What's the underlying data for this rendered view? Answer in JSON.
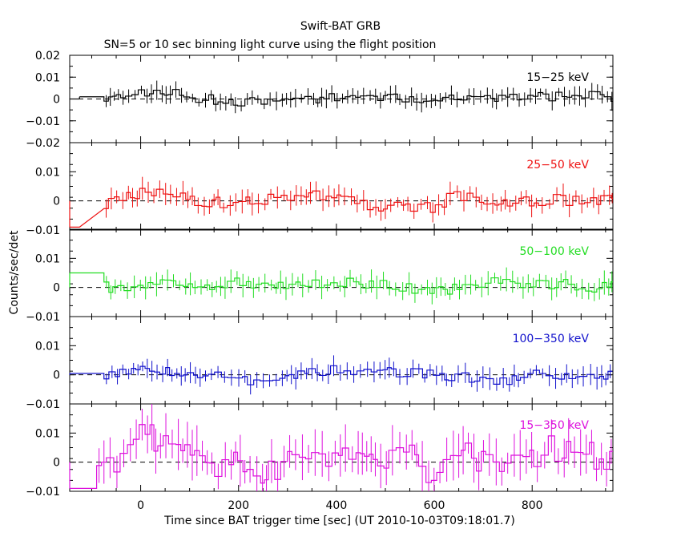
{
  "title": "Swift-BAT GRB",
  "subtitle": "SN=5 or 10 sec binning light curve using the flight position",
  "xlabel": "Time since BAT trigger time [sec] (UT 2010-10-03T09:18:01.7)",
  "ylabel": "Counts/sec/det",
  "xticks": [
    "0",
    "200",
    "400",
    "600",
    "800"
  ],
  "chart_data": {
    "type": "line",
    "xlim": [
      -145,
      965
    ],
    "x_tick_values": [
      0,
      200,
      400,
      600,
      800
    ],
    "panels": [
      {
        "name": "15−25 keV",
        "color": "#000000",
        "ylim": [
          -0.02,
          0.02
        ],
        "ytick_values": [
          -0.02,
          -0.01,
          0,
          0.01,
          0.02
        ],
        "ytick_labels": [
          "−0.02",
          "−0.01",
          "0",
          "0.01",
          "0.02"
        ],
        "first_bin": {
          "x0": -125,
          "x1": -75,
          "y": 0.001
        },
        "cps": [
          [
            -75,
            0
          ],
          [
            -60,
            0
          ],
          [
            0,
            0.003
          ],
          [
            60,
            0.003
          ],
          [
            120,
            0
          ],
          [
            200,
            -0.001
          ],
          [
            260,
            -0.002
          ],
          [
            320,
            0
          ],
          [
            430,
            0.001
          ],
          [
            500,
            0
          ],
          [
            650,
            0.001
          ],
          [
            740,
            0
          ],
          [
            940,
            0.002
          ],
          [
            965,
            0.0005
          ]
        ],
        "amp": 0.0022,
        "err": 0.003,
        "seed": 11
      },
      {
        "name": "25−50 keV",
        "color": "#ee1111",
        "ylim": [
          -0.01,
          0.02
        ],
        "ytick_values": [
          -0.01,
          0,
          0.01
        ],
        "ytick_labels": [
          "−0.01",
          "0",
          "0.01"
        ],
        "first_bin": {
          "x0": -145,
          "x1": -125,
          "y": -0.009
        },
        "cps": [
          [
            -75,
            -0.003
          ],
          [
            -60,
            0
          ],
          [
            0,
            0.003
          ],
          [
            60,
            0.004
          ],
          [
            120,
            0
          ],
          [
            200,
            -0.001
          ],
          [
            360,
            0.003
          ],
          [
            420,
            0
          ],
          [
            500,
            -0.002
          ],
          [
            600,
            -0.002
          ],
          [
            650,
            0.002
          ],
          [
            740,
            0
          ],
          [
            965,
            0.0005
          ]
        ],
        "amp": 0.002,
        "err": 0.0028,
        "seed": 23
      },
      {
        "name": "50−100 keV",
        "color": "#22dd22",
        "ylim": [
          -0.01,
          0.02
        ],
        "ytick_values": [
          -0.01,
          0,
          0.01
        ],
        "ytick_labels": [
          "−0.01",
          "0",
          "0.01"
        ],
        "first_bin": {
          "x0": -145,
          "x1": -75,
          "y": 0.005
        },
        "cps": [
          [
            -75,
            0.002
          ],
          [
            -60,
            0
          ],
          [
            70,
            0.002
          ],
          [
            120,
            -0.001
          ],
          [
            210,
            0.002
          ],
          [
            300,
            0
          ],
          [
            500,
            0.002
          ],
          [
            600,
            -0.002
          ],
          [
            660,
            0
          ],
          [
            740,
            0.002
          ],
          [
            965,
            0
          ]
        ],
        "amp": 0.002,
        "err": 0.0028,
        "seed": 37
      },
      {
        "name": "100−350 keV",
        "color": "#1111cc",
        "ylim": [
          -0.01,
          0.02
        ],
        "ytick_values": [
          -0.01,
          0,
          0.01
        ],
        "ytick_labels": [
          "−0.01",
          "0",
          "0.01"
        ],
        "first_bin": {
          "x0": -145,
          "x1": -75,
          "y": 0.0005
        },
        "cps": [
          [
            -75,
            0
          ],
          [
            40,
            0.002
          ],
          [
            120,
            0
          ],
          [
            230,
            -0.002
          ],
          [
            300,
            0
          ],
          [
            420,
            0.002
          ],
          [
            600,
            0
          ],
          [
            740,
            -0.002
          ],
          [
            800,
            0
          ],
          [
            965,
            0
          ]
        ],
        "amp": 0.0018,
        "err": 0.0026,
        "seed": 53
      },
      {
        "name": "15−350 keV",
        "color": "#dd11dd",
        "ylim": [
          -0.01,
          0.02
        ],
        "ytick_values": [
          -0.01,
          0,
          0.01
        ],
        "ytick_labels": [
          "−0.01",
          "0",
          "0.01"
        ],
        "first_bin": {
          "x0": -145,
          "x1": -90,
          "y": -0.009
        },
        "cps": [
          [
            -90,
            -0.004
          ],
          [
            -60,
            0
          ],
          [
            0,
            0.008
          ],
          [
            70,
            0.009
          ],
          [
            120,
            0
          ],
          [
            280,
            -0.003
          ],
          [
            360,
            0.006
          ],
          [
            420,
            0
          ],
          [
            550,
            0.002
          ],
          [
            600,
            -0.004
          ],
          [
            650,
            0.003
          ],
          [
            740,
            0
          ],
          [
            850,
            0.005
          ],
          [
            965,
            0.001
          ]
        ],
        "amp": 0.005,
        "err": 0.006,
        "seed": 71
      }
    ]
  }
}
